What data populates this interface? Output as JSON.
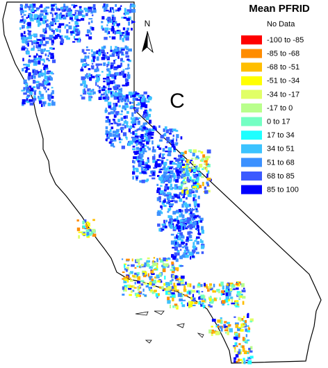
{
  "map": {
    "panel_label": "C",
    "north_label": "N",
    "legend": {
      "title": "Mean PFRID",
      "no_data": "No Data",
      "items": [
        {
          "label": "-100 to -85",
          "color": "#ff0000"
        },
        {
          "label": "-85 to -68",
          "color": "#ff8c00"
        },
        {
          "label": "-68 to -51",
          "color": "#ffbe00"
        },
        {
          "label": "-51 to -34",
          "color": "#ffff00"
        },
        {
          "label": "-34 to -17",
          "color": "#e1ff66"
        },
        {
          "label": "-17 to 0",
          "color": "#b9ff8c"
        },
        {
          "label": "0 to 17",
          "color": "#73ffc3"
        },
        {
          "label": "17 to 34",
          "color": "#1effff"
        },
        {
          "label": "34 to 51",
          "color": "#3cc3ff"
        },
        {
          "label": "51 to 68",
          "color": "#3c91ff"
        },
        {
          "label": "68 to 85",
          "color": "#3c5aff"
        },
        {
          "label": "85 to 100",
          "color": "#0000ff"
        }
      ]
    }
  }
}
